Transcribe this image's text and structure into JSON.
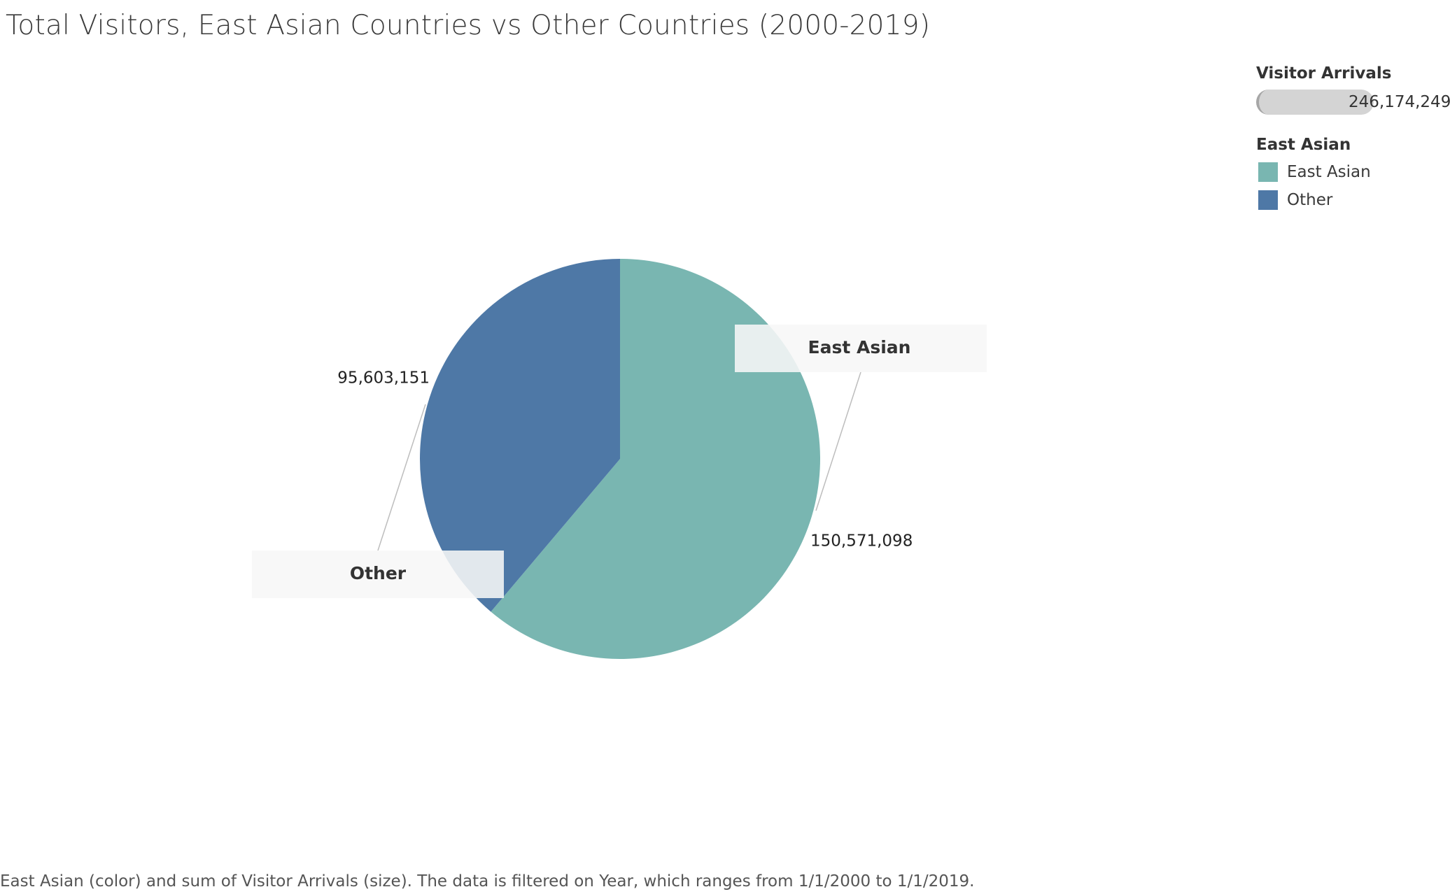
{
  "title": "Total Visitors, East Asian Countries vs Other Countries (2000-2019)",
  "colors": {
    "east_asian": "#79b6b1",
    "other": "#4e78a6"
  },
  "legend": {
    "size_title": "Visitor Arrivals",
    "size_value": "246,174,249",
    "color_title": "East Asian",
    "items": [
      {
        "label": "East Asian",
        "color": "#79b6b1"
      },
      {
        "label": "Other",
        "color": "#4e78a6"
      }
    ]
  },
  "chart_data": {
    "type": "pie",
    "title": "Total Visitors, East Asian Countries vs Other Countries (2000-2019)",
    "slices": [
      {
        "label": "East Asian",
        "value": 150571098,
        "value_label": "150,571,098",
        "color": "#79b6b1"
      },
      {
        "label": "Other",
        "value": 95603151,
        "value_label": "95,603,151",
        "color": "#4e78a6"
      }
    ],
    "total": 246174249,
    "legend_position": "top-right"
  },
  "caption": "East Asian (color) and sum of Visitor Arrivals (size). The data is filtered on Year, which ranges from 1/1/2000 to 1/1/2019."
}
